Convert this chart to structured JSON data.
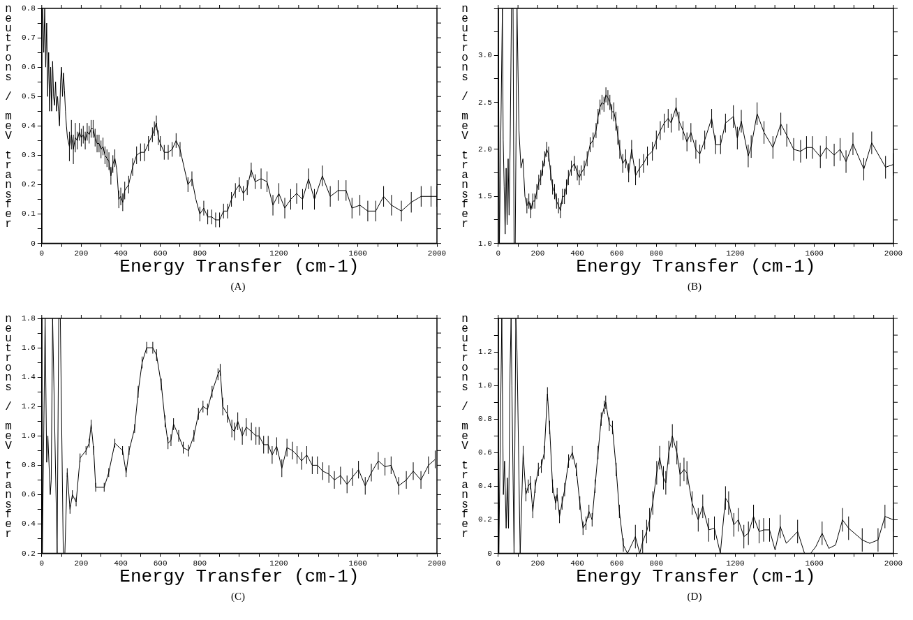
{
  "chart_data": [
    {
      "type": "line",
      "title": "(A)",
      "xlabel": "Energy Transfer (cm-1)",
      "ylabel": "neutrons / meV transfer",
      "x": [
        5,
        10,
        15,
        20,
        25,
        30,
        35,
        40,
        45,
        50,
        55,
        60,
        65,
        70,
        75,
        80,
        85,
        90,
        95,
        100,
        105,
        110,
        115,
        120,
        125,
        130,
        140,
        150,
        160,
        170,
        180,
        190,
        200,
        210,
        220,
        230,
        240,
        250,
        260,
        270,
        280,
        290,
        300,
        310,
        320,
        330,
        340,
        350,
        360,
        370,
        380,
        390,
        400,
        410,
        420,
        440,
        460,
        480,
        500,
        520,
        540,
        560,
        570,
        580,
        590,
        600,
        620,
        640,
        660,
        680,
        700,
        720,
        740,
        760,
        780,
        800,
        820,
        840,
        860,
        880,
        900,
        920,
        940,
        960,
        980,
        1000,
        1020,
        1040,
        1060,
        1080,
        1110,
        1140,
        1170,
        1200,
        1230,
        1260,
        1290,
        1320,
        1350,
        1380,
        1420,
        1460,
        1500,
        1540,
        1570,
        1610,
        1650,
        1690,
        1730,
        1770,
        1820,
        1870,
        1920,
        1970,
        2000
      ],
      "series": [
        {
          "color": "#000000",
          "values": [
            0.8,
            0.65,
            0.8,
            0.6,
            0.75,
            0.5,
            0.65,
            0.45,
            0.6,
            0.45,
            0.62,
            0.5,
            0.47,
            0.55,
            0.45,
            0.5,
            0.45,
            0.4,
            0.55,
            0.6,
            0.5,
            0.58,
            0.52,
            0.45,
            0.4,
            0.36,
            0.33,
            0.37,
            0.32,
            0.36,
            0.35,
            0.38,
            0.36,
            0.37,
            0.35,
            0.38,
            0.37,
            0.39,
            0.39,
            0.36,
            0.34,
            0.34,
            0.32,
            0.33,
            0.3,
            0.29,
            0.28,
            0.23,
            0.27,
            0.29,
            0.25,
            0.15,
            0.16,
            0.14,
            0.18,
            0.2,
            0.26,
            0.3,
            0.31,
            0.31,
            0.34,
            0.37,
            0.39,
            0.41,
            0.36,
            0.34,
            0.31,
            0.31,
            0.32,
            0.35,
            0.32,
            0.26,
            0.2,
            0.22,
            0.15,
            0.1,
            0.12,
            0.09,
            0.09,
            0.08,
            0.08,
            0.11,
            0.11,
            0.15,
            0.18,
            0.2,
            0.17,
            0.19,
            0.25,
            0.21,
            0.22,
            0.21,
            0.13,
            0.17,
            0.12,
            0.15,
            0.17,
            0.15,
            0.22,
            0.15,
            0.23,
            0.16,
            0.18,
            0.18,
            0.12,
            0.13,
            0.11,
            0.11,
            0.16,
            0.13,
            0.11,
            0.14,
            0.16,
            0.16,
            0.16
          ],
          "errors": [
            null,
            null,
            null,
            null,
            null,
            null,
            null,
            null,
            null,
            null,
            null,
            null,
            null,
            null,
            null,
            null,
            null,
            null,
            null,
            null,
            null,
            null,
            null,
            null,
            null,
            null,
            0.05,
            0.05,
            0.05,
            0.05,
            0.03,
            0.03,
            0.03,
            0.03,
            0.03,
            0.03,
            0.03,
            0.03,
            0.03,
            0.03,
            0.03,
            0.03,
            0.03,
            0.03,
            0.03,
            0.03,
            0.03,
            0.03,
            0.03,
            0.03,
            null,
            0.03,
            0.03,
            0.03,
            0.03,
            0.03,
            0.03,
            0.03,
            0.03,
            0.03,
            0.025,
            0.025,
            0.025,
            0.025,
            0.025,
            0.025,
            0.025,
            0.025,
            0.025,
            0.025,
            0.025,
            null,
            0.025,
            0.025,
            null,
            0.025,
            0.025,
            0.025,
            0.025,
            0.025,
            0.025,
            0.025,
            0.025,
            0.025,
            0.025,
            0.025,
            0.025,
            0.025,
            0.025,
            0.025,
            0.035,
            0.035,
            0.035,
            0.035,
            0.035,
            0.035,
            0.035,
            0.035,
            0.035,
            0.035,
            0.035,
            0.035,
            0.035,
            0.035,
            0.035,
            0.035,
            0.035,
            0.035,
            0.035,
            0.035,
            0.035,
            0.035,
            0.035,
            0.035,
            0.035
          ]
        }
      ],
      "xlim": [
        0,
        2000
      ],
      "xticks": [
        0,
        {
          "value": 100,
          "label": null
        },
        200,
        {
          "value": 300,
          "label": null
        },
        400,
        {
          "value": 500,
          "label": null
        },
        600,
        {
          "value": 700,
          "label": null
        },
        800,
        {
          "value": 900,
          "label": null
        },
        {
          "value": 1000,
          "label": null
        },
        {
          "value": 1100,
          "label": null
        },
        1200,
        {
          "value": 1300,
          "label": null
        },
        {
          "value": 1400,
          "label": null
        },
        {
          "value": 1500,
          "label": null
        },
        1600,
        {
          "value": 1700,
          "label": null
        },
        {
          "value": 1800,
          "label": null
        },
        {
          "value": 1900,
          "label": null
        },
        2000
      ],
      "ylim": [
        0,
        0.8
      ],
      "yticks": [
        0,
        {
          "value": 0.05,
          "label": null
        },
        0.1,
        {
          "value": 0.15,
          "label": null
        },
        0.2,
        {
          "value": 0.25,
          "label": null
        },
        0.3,
        {
          "value": 0.35,
          "label": null
        },
        0.4,
        {
          "value": 0.45,
          "label": null
        },
        0.5,
        {
          "value": 0.55,
          "label": null
        },
        0.6,
        {
          "value": 0.65,
          "label": null
        },
        0.7,
        {
          "value": 0.75,
          "label": null
        },
        0.8
      ]
    },
    {
      "type": "line",
      "title": "(B)",
      "xlabel": "Energy Transfer (cm-1)",
      "ylabel": "neutrons / meV transfer",
      "x": [
        0,
        6,
        21,
        25,
        30,
        35,
        40,
        45,
        50,
        55,
        60,
        67,
        75,
        80,
        86,
        95,
        105,
        115,
        125,
        135,
        145,
        155,
        165,
        175,
        185,
        195,
        205,
        215,
        225,
        235,
        245,
        255,
        265,
        275,
        285,
        295,
        305,
        315,
        325,
        335,
        345,
        355,
        370,
        385,
        400,
        410,
        420,
        435,
        450,
        465,
        480,
        495,
        505,
        515,
        525,
        535,
        545,
        555,
        565,
        575,
        585,
        595,
        605,
        615,
        630,
        645,
        660,
        675,
        695,
        715,
        735,
        755,
        780,
        800,
        820,
        840,
        860,
        875,
        900,
        915,
        935,
        955,
        975,
        1000,
        1020,
        1045,
        1080,
        1100,
        1125,
        1150,
        1190,
        1210,
        1230,
        1265,
        1280,
        1310,
        1345,
        1390,
        1430,
        1460,
        1495,
        1530,
        1560,
        1590,
        1630,
        1660,
        1700,
        1730,
        1760,
        1795,
        1850,
        1890,
        1960,
        2000
      ],
      "series": [
        {
          "color": "#000000",
          "values": [
            3.5,
            1.0,
            3.5,
            2.1,
            1.6,
            1.1,
            1.8,
            1.2,
            1.9,
            1.3,
            2.0,
            3.5,
            3.5,
            1.0,
            1.0,
            3.5,
            2.2,
            1.8,
            1.9,
            1.5,
            1.4,
            1.45,
            1.35,
            1.45,
            1.45,
            1.55,
            1.65,
            1.7,
            1.8,
            1.9,
            2.0,
            1.95,
            1.75,
            1.6,
            1.55,
            1.45,
            1.4,
            1.35,
            1.5,
            1.5,
            1.6,
            1.7,
            1.8,
            1.85,
            1.75,
            1.7,
            1.75,
            1.8,
            1.9,
            2.05,
            2.1,
            2.2,
            2.35,
            2.45,
            2.5,
            2.48,
            2.58,
            2.55,
            2.5,
            2.4,
            2.4,
            2.3,
            2.15,
            2.0,
            1.85,
            1.9,
            1.75,
            2.0,
            1.72,
            1.8,
            1.85,
            1.93,
            1.98,
            2.1,
            2.2,
            2.28,
            2.33,
            2.28,
            2.45,
            2.3,
            2.2,
            2.08,
            2.18,
            2.0,
            1.95,
            2.1,
            2.33,
            2.05,
            2.05,
            2.28,
            2.35,
            2.12,
            2.3,
            1.93,
            2.03,
            2.38,
            2.18,
            2.02,
            2.27,
            2.15,
            2.0,
            1.98,
            2.02,
            2.02,
            1.92,
            2.02,
            1.94,
            2.0,
            1.87,
            2.06,
            1.79,
            2.07,
            1.81,
            1.84
          ],
          "errors": [
            null,
            null,
            null,
            null,
            null,
            null,
            null,
            null,
            null,
            null,
            null,
            null,
            null,
            null,
            null,
            null,
            null,
            null,
            null,
            null,
            0.08,
            0.08,
            0.08,
            0.08,
            0.08,
            0.08,
            0.08,
            0.08,
            0.08,
            0.08,
            0.08,
            0.08,
            0.08,
            0.08,
            0.08,
            0.08,
            0.08,
            0.08,
            0.08,
            0.08,
            0.08,
            0.08,
            0.08,
            0.08,
            0.08,
            0.08,
            0.08,
            0.08,
            0.08,
            0.08,
            0.08,
            0.08,
            0.08,
            0.08,
            0.08,
            0.08,
            0.08,
            0.08,
            0.08,
            0.08,
            0.1,
            0.1,
            0.1,
            0.1,
            0.1,
            0.1,
            0.1,
            0.1,
            0.1,
            0.1,
            0.1,
            0.1,
            0.1,
            0.1,
            0.1,
            0.1,
            0.1,
            0.1,
            0.1,
            0.1,
            0.1,
            0.1,
            0.1,
            0.1,
            0.1,
            0.1,
            0.1,
            0.1,
            0.1,
            0.1,
            0.12,
            0.12,
            0.12,
            0.12,
            0.12,
            0.12,
            0.12,
            0.12,
            0.12,
            0.12,
            0.12,
            0.12,
            0.12,
            0.12,
            0.12,
            0.12,
            0.12,
            0.12,
            0.12,
            0.12,
            0.12,
            0.12,
            0.12,
            0.12
          ]
        }
      ],
      "xlim": [
        0,
        2000
      ],
      "xticks": [
        0,
        {
          "value": 100,
          "label": null
        },
        200,
        {
          "value": 300,
          "label": null
        },
        400,
        {
          "value": 500,
          "label": null
        },
        600,
        {
          "value": 700,
          "label": null
        },
        800,
        {
          "value": 900,
          "label": null
        },
        {
          "value": 1000,
          "label": null
        },
        {
          "value": 1100,
          "label": null
        },
        1200,
        {
          "value": 1300,
          "label": null
        },
        {
          "value": 1400,
          "label": null
        },
        {
          "value": 1500,
          "label": null
        },
        1600,
        {
          "value": 1700,
          "label": null
        },
        {
          "value": 1800,
          "label": null
        },
        {
          "value": 1900,
          "label": null
        },
        2000
      ],
      "ylim": [
        1.0,
        3.5
      ],
      "yticks": [
        {
          "value": 1.0,
          "label": "1.0"
        },
        {
          "value": 1.25,
          "label": null
        },
        1.5,
        {
          "value": 1.75,
          "label": null
        },
        {
          "value": 2.0,
          "label": "2.0"
        },
        {
          "value": 2.25,
          "label": null
        },
        2.5,
        {
          "value": 2.75,
          "label": null
        },
        {
          "value": 3.0,
          "label": "3.0"
        },
        {
          "value": 3.25,
          "label": null
        },
        {
          "value": 3.5,
          "label": null
        }
      ]
    },
    {
      "type": "line",
      "title": "(C)",
      "xlabel": "Energy Transfer (cm-1)",
      "ylabel": "neutrons / meV transfer",
      "x": [
        0,
        3,
        17,
        25,
        31,
        43,
        48,
        55,
        78,
        86,
        94,
        109,
        117,
        129,
        143,
        155,
        174,
        194,
        224,
        240,
        250,
        263,
        273,
        316,
        339,
        370,
        409,
        427,
        442,
        470,
        488,
        508,
        531,
        562,
        581,
        605,
        624,
        639,
        654,
        667,
        693,
        716,
        743,
        770,
        793,
        816,
        839,
        862,
        892,
        903,
        916,
        939,
        962,
        975,
        992,
        1015,
        1035,
        1061,
        1084,
        1100,
        1123,
        1146,
        1166,
        1189,
        1215,
        1241,
        1269,
        1292,
        1315,
        1341,
        1369,
        1395,
        1422,
        1453,
        1481,
        1512,
        1545,
        1573,
        1603,
        1637,
        1668,
        1703,
        1737,
        1768,
        1806,
        1845,
        1880,
        1919,
        1957,
        1991
      ],
      "series": [
        {
          "color": "#000000",
          "values": [
            1.8,
            0.2,
            1.8,
            0.82,
            1.0,
            0.6,
            0.7,
            1.8,
            0.2,
            1.8,
            1.8,
            0.2,
            0.2,
            0.75,
            0.5,
            0.6,
            0.55,
            0.85,
            0.9,
            0.95,
            1.08,
            0.9,
            0.65,
            0.65,
            0.75,
            0.95,
            0.9,
            0.75,
            0.9,
            1.05,
            1.3,
            1.5,
            1.6,
            1.6,
            1.55,
            1.35,
            1.1,
            0.95,
            0.97,
            1.08,
            1.0,
            0.92,
            0.9,
            1.0,
            1.15,
            1.2,
            1.18,
            1.3,
            1.42,
            1.45,
            1.2,
            1.15,
            1.05,
            1.03,
            1.1,
            1.0,
            1.06,
            1.03,
            1.0,
            1.0,
            0.94,
            0.94,
            0.87,
            0.93,
            0.78,
            0.92,
            0.9,
            0.87,
            0.83,
            0.87,
            0.8,
            0.8,
            0.76,
            0.74,
            0.7,
            0.73,
            0.67,
            0.72,
            0.77,
            0.66,
            0.75,
            0.83,
            0.79,
            0.8,
            0.66,
            0.7,
            0.76,
            0.7,
            0.8,
            0.84
          ],
          "errors": [
            null,
            null,
            null,
            null,
            null,
            null,
            null,
            null,
            null,
            null,
            null,
            null,
            null,
            0.03,
            0.03,
            0.03,
            0.03,
            0.03,
            0.03,
            0.03,
            0.03,
            0.03,
            0.03,
            0.03,
            0.03,
            0.03,
            0.03,
            0.03,
            0.03,
            0.03,
            0.04,
            0.04,
            0.04,
            0.04,
            0.04,
            0.04,
            0.04,
            0.04,
            0.04,
            0.04,
            0.04,
            0.04,
            0.04,
            0.04,
            0.04,
            0.04,
            0.04,
            0.04,
            0.04,
            0.04,
            0.06,
            0.06,
            0.06,
            0.06,
            0.06,
            0.06,
            0.06,
            0.06,
            0.06,
            0.06,
            0.06,
            0.06,
            0.06,
            0.06,
            0.06,
            0.06,
            0.06,
            0.06,
            0.06,
            0.06,
            0.06,
            0.06,
            0.06,
            0.06,
            0.06,
            0.06,
            0.06,
            0.06,
            0.06,
            0.06,
            0.06,
            0.06,
            0.06,
            0.06,
            0.06,
            0.06,
            0.06,
            0.06,
            0.06,
            0.06
          ]
        }
      ],
      "xlim": [
        0,
        2000
      ],
      "xticks": [
        0,
        {
          "value": 100,
          "label": null
        },
        200,
        {
          "value": 300,
          "label": null
        },
        400,
        {
          "value": 500,
          "label": null
        },
        600,
        {
          "value": 700,
          "label": null
        },
        800,
        {
          "value": 900,
          "label": null
        },
        {
          "value": 1000,
          "label": null
        },
        {
          "value": 1100,
          "label": null
        },
        1200,
        {
          "value": 1300,
          "label": null
        },
        {
          "value": 1400,
          "label": null
        },
        {
          "value": 1500,
          "label": null
        },
        1600,
        {
          "value": 1700,
          "label": null
        },
        {
          "value": 1800,
          "label": null
        },
        {
          "value": 1900,
          "label": null
        },
        2000
      ],
      "ylim": [
        0.2,
        1.8
      ],
      "yticks": [
        0.2,
        {
          "value": 0.3,
          "label": null
        },
        0.4,
        {
          "value": 0.5,
          "label": null
        },
        0.6,
        {
          "value": 0.7,
          "label": null
        },
        0.8,
        {
          "value": 0.9,
          "label": null
        },
        {
          "value": 1.0,
          "label": "1.0"
        },
        {
          "value": 1.1,
          "label": null
        },
        1.2,
        {
          "value": 1.3,
          "label": null
        },
        1.4,
        {
          "value": 1.5,
          "label": null
        },
        1.6,
        {
          "value": 1.7,
          "label": null
        },
        1.8
      ]
    },
    {
      "type": "line",
      "title": "(D)",
      "xlabel": "Energy Transfer (cm-1)",
      "ylabel": "neutrons / meV transfer",
      "x": [
        0,
        3,
        18,
        26,
        32,
        40,
        46,
        52,
        60,
        65,
        69,
        80,
        89,
        95,
        111,
        126,
        140,
        152,
        163,
        175,
        187,
        203,
        218,
        233,
        249,
        260,
        275,
        290,
        298,
        310,
        323,
        336,
        356,
        375,
        395,
        413,
        429,
        444,
        459,
        475,
        490,
        505,
        521,
        536,
        544,
        562,
        578,
        597,
        613,
        633,
        654,
        674,
        694,
        716,
        731,
        751,
        766,
        782,
        802,
        817,
        836,
        848,
        863,
        881,
        904,
        920,
        940,
        955,
        981,
        1012,
        1035,
        1065,
        1094,
        1124,
        1150,
        1166,
        1192,
        1215,
        1243,
        1266,
        1292,
        1320,
        1343,
        1373,
        1401,
        1427,
        1458,
        1515,
        1550,
        1581,
        1607,
        1639,
        1673,
        1707,
        1742,
        1773,
        1842,
        1880,
        1922,
        1957,
        2000
      ],
      "series": [
        {
          "color": "#000000",
          "values": [
            1.4,
            0,
            1.4,
            0.35,
            0.55,
            0.15,
            0.45,
            0.15,
            1.1,
            1.4,
            1.0,
            0,
            1.4,
            1.2,
            0,
            0.6,
            0.35,
            0.4,
            0.42,
            0.25,
            0.4,
            0.5,
            0.52,
            0.6,
            0.95,
            0.75,
            0.4,
            0.3,
            0.35,
            0.22,
            0.3,
            0.38,
            0.55,
            0.6,
            0.5,
            0.3,
            0.15,
            0.18,
            0.25,
            0.2,
            0.4,
            0.6,
            0.8,
            0.87,
            0.9,
            0.77,
            0.75,
            0.5,
            0.25,
            0.05,
            0,
            0.05,
            0.1,
            0,
            0.07,
            0.13,
            0.2,
            0.3,
            0.48,
            0.57,
            0.45,
            0.42,
            0.6,
            0.7,
            0.6,
            0.47,
            0.5,
            0.48,
            0.3,
            0.2,
            0.28,
            0.14,
            0.15,
            0,
            0.33,
            0.3,
            0.17,
            0.2,
            0.1,
            0.12,
            0.22,
            0.13,
            0.14,
            0.14,
            0.02,
            0.16,
            0.06,
            0.13,
            0,
            0,
            0.04,
            0.12,
            0.03,
            0.05,
            0.2,
            0.15,
            0.08,
            0.06,
            0.08,
            0.22,
            0.2
          ],
          "errors": [
            null,
            null,
            null,
            null,
            null,
            null,
            null,
            null,
            null,
            null,
            null,
            null,
            null,
            null,
            null,
            0.04,
            0.04,
            0.04,
            0.04,
            0.04,
            0.04,
            0.04,
            0.04,
            0.04,
            0.04,
            0.04,
            0.04,
            0.04,
            0.04,
            0.04,
            0.04,
            0.04,
            0.04,
            0.04,
            0.04,
            0.04,
            0.04,
            0.04,
            0.04,
            0.04,
            0.04,
            0.04,
            0.04,
            0.04,
            0.04,
            0.04,
            0.04,
            0.04,
            0.04,
            0.04,
            null,
            null,
            0.07,
            null,
            0.07,
            0.07,
            0.07,
            0.07,
            0.07,
            0.07,
            0.07,
            0.07,
            0.07,
            0.07,
            0.07,
            0.07,
            0.07,
            0.07,
            0.07,
            0.07,
            0.07,
            0.07,
            0.07,
            null,
            0.07,
            0.07,
            0.07,
            0.07,
            0.07,
            0.07,
            0.07,
            0.07,
            0.07,
            0.07,
            null,
            0.07,
            null,
            0.07,
            null,
            null,
            null,
            0.07,
            null,
            null,
            0.07,
            0.07,
            0.07,
            null,
            0.07,
            0.07,
            0.07
          ]
        }
      ],
      "xlim": [
        0,
        2000
      ],
      "xticks": [
        0,
        {
          "value": 100,
          "label": null
        },
        200,
        {
          "value": 300,
          "label": null
        },
        400,
        {
          "value": 500,
          "label": null
        },
        600,
        {
          "value": 700,
          "label": null
        },
        800,
        {
          "value": 900,
          "label": null
        },
        {
          "value": 1000,
          "label": null
        },
        {
          "value": 1100,
          "label": null
        },
        1200,
        {
          "value": 1300,
          "label": null
        },
        {
          "value": 1400,
          "label": null
        },
        {
          "value": 1500,
          "label": null
        },
        1600,
        {
          "value": 1700,
          "label": null
        },
        {
          "value": 1800,
          "label": null
        },
        {
          "value": 1900,
          "label": null
        },
        2000
      ],
      "ylim": [
        0,
        1.4
      ],
      "yticks": [
        0,
        {
          "value": 0.1,
          "label": null
        },
        0.2,
        {
          "value": 0.3,
          "label": null
        },
        0.4,
        {
          "value": 0.5,
          "label": null
        },
        0.6,
        {
          "value": 0.7,
          "label": null
        },
        0.8,
        {
          "value": 0.9,
          "label": null
        },
        {
          "value": 1.0,
          "label": "1.0"
        },
        {
          "value": 1.1,
          "label": null
        },
        1.2,
        {
          "value": 1.3,
          "label": null
        },
        {
          "value": 1.4,
          "label": null
        }
      ]
    }
  ]
}
